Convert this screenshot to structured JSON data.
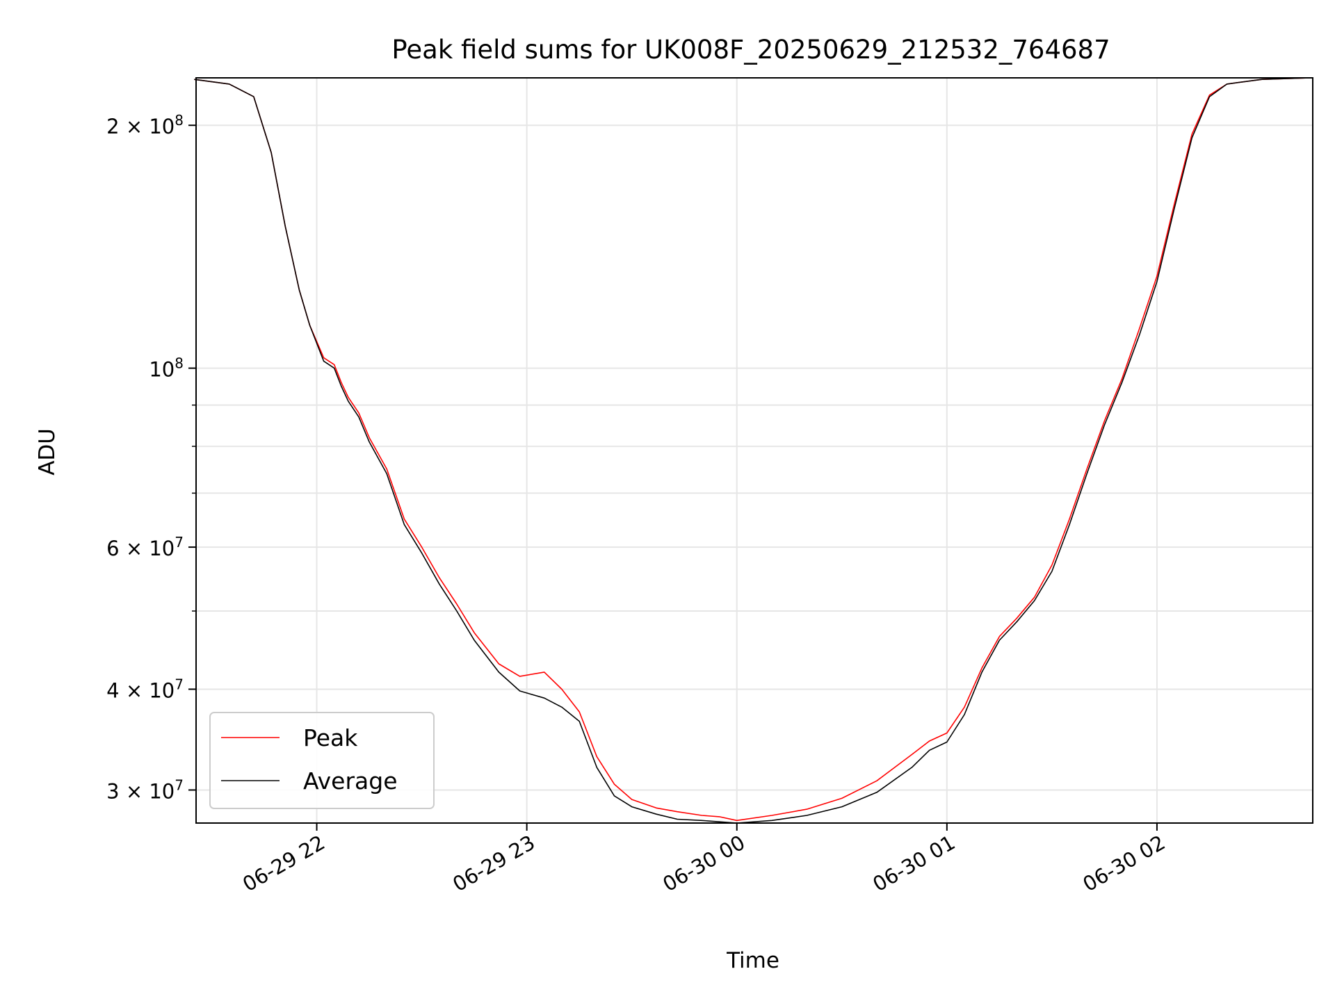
{
  "chart_data": {
    "type": "line",
    "title": "Peak field sums for UK008F_20250629_212532_764687",
    "xlabel": "Time",
    "ylabel": "ADU",
    "yscale": "log",
    "ylim": [
      27300000,
      229000000
    ],
    "xlim": [
      "2025-06-29 21:25:32",
      "2025-06-30 02:44:30"
    ],
    "grid": true,
    "legend_position": "lower-left",
    "x_ticks": [
      {
        "t": "2025-06-29 22:00",
        "label": "06-29 22"
      },
      {
        "t": "2025-06-29 23:00",
        "label": "06-29 23"
      },
      {
        "t": "2025-06-30 00:00",
        "label": "06-30 00"
      },
      {
        "t": "2025-06-30 01:00",
        "label": "06-30 01"
      },
      {
        "t": "2025-06-30 02:00",
        "label": "06-30 02"
      }
    ],
    "y_major_ticks": [
      {
        "value": 30000000,
        "mantissa": "3",
        "exp": "7"
      },
      {
        "value": 40000000,
        "mantissa": "4",
        "exp": "7"
      },
      {
        "value": 60000000,
        "mantissa": "6",
        "exp": "7"
      },
      {
        "value": 100000000,
        "mantissa": "",
        "exp": "8"
      },
      {
        "value": 200000000,
        "mantissa": "2",
        "exp": "8"
      }
    ],
    "y_minor_ticks": [
      50000000,
      70000000,
      80000000,
      90000000
    ],
    "series": [
      {
        "name": "Peak",
        "color": "#ff0000",
        "x": [
          "2025-06-29 21:25",
          "2025-06-29 21:35",
          "2025-06-29 21:42",
          "2025-06-29 21:47",
          "2025-06-29 21:51",
          "2025-06-29 21:55",
          "2025-06-29 21:58",
          "2025-06-29 22:02",
          "2025-06-29 22:05",
          "2025-06-29 22:07",
          "2025-06-29 22:09",
          "2025-06-29 22:12",
          "2025-06-29 22:15",
          "2025-06-29 22:20",
          "2025-06-29 22:25",
          "2025-06-29 22:30",
          "2025-06-29 22:35",
          "2025-06-29 22:40",
          "2025-06-29 22:45",
          "2025-06-29 22:52",
          "2025-06-29 22:58",
          "2025-06-29 23:05",
          "2025-06-29 23:10",
          "2025-06-29 23:15",
          "2025-06-29 23:20",
          "2025-06-29 23:25",
          "2025-06-29 23:30",
          "2025-06-29 23:37",
          "2025-06-29 23:43",
          "2025-06-29 23:50",
          "2025-06-29 23:55",
          "2025-06-30 00:00",
          "2025-06-30 00:10",
          "2025-06-30 00:20",
          "2025-06-30 00:30",
          "2025-06-30 00:40",
          "2025-06-30 00:50",
          "2025-06-30 00:55",
          "2025-06-30 01:00",
          "2025-06-30 01:05",
          "2025-06-30 01:10",
          "2025-06-30 01:15",
          "2025-06-30 01:20",
          "2025-06-30 01:25",
          "2025-06-30 01:30",
          "2025-06-30 01:35",
          "2025-06-30 01:40",
          "2025-06-30 01:45",
          "2025-06-30 01:50",
          "2025-06-30 01:55",
          "2025-06-30 02:00",
          "2025-06-30 02:05",
          "2025-06-30 02:10",
          "2025-06-30 02:15",
          "2025-06-30 02:20",
          "2025-06-30 02:30",
          "2025-06-30 02:44"
        ],
        "y": [
          228000000,
          225000000,
          217000000,
          185000000,
          150000000,
          125000000,
          113000000,
          103000000,
          101000000,
          96000000,
          92000000,
          88000000,
          82000000,
          75000000,
          65000000,
          60000000,
          55000000,
          51000000,
          47000000,
          43000000,
          41500000,
          42000000,
          40000000,
          37500000,
          33000000,
          30500000,
          29200000,
          28500000,
          28200000,
          27900000,
          27800000,
          27500000,
          27900000,
          28400000,
          29300000,
          30800000,
          33200000,
          34500000,
          35300000,
          38000000,
          42500000,
          46500000,
          49000000,
          52000000,
          57000000,
          65000000,
          75000000,
          86000000,
          97000000,
          112000000,
          130000000,
          160000000,
          195000000,
          218000000,
          225000000,
          228000000,
          229000000
        ]
      },
      {
        "name": "Average",
        "color": "#000000",
        "x": [
          "2025-06-29 21:25",
          "2025-06-29 21:35",
          "2025-06-29 21:42",
          "2025-06-29 21:47",
          "2025-06-29 21:51",
          "2025-06-29 21:55",
          "2025-06-29 21:58",
          "2025-06-29 22:02",
          "2025-06-29 22:05",
          "2025-06-29 22:07",
          "2025-06-29 22:09",
          "2025-06-29 22:12",
          "2025-06-29 22:15",
          "2025-06-29 22:20",
          "2025-06-29 22:25",
          "2025-06-29 22:30",
          "2025-06-29 22:35",
          "2025-06-29 22:40",
          "2025-06-29 22:45",
          "2025-06-29 22:52",
          "2025-06-29 22:58",
          "2025-06-29 23:05",
          "2025-06-29 23:10",
          "2025-06-29 23:15",
          "2025-06-29 23:20",
          "2025-06-29 23:25",
          "2025-06-29 23:30",
          "2025-06-29 23:37",
          "2025-06-29 23:43",
          "2025-06-29 23:50",
          "2025-06-29 23:55",
          "2025-06-30 00:00",
          "2025-06-30 00:10",
          "2025-06-30 00:20",
          "2025-06-30 00:30",
          "2025-06-30 00:40",
          "2025-06-30 00:50",
          "2025-06-30 00:55",
          "2025-06-30 01:00",
          "2025-06-30 01:05",
          "2025-06-30 01:10",
          "2025-06-30 01:15",
          "2025-06-30 01:20",
          "2025-06-30 01:25",
          "2025-06-30 01:30",
          "2025-06-30 01:35",
          "2025-06-30 01:40",
          "2025-06-30 01:45",
          "2025-06-30 01:50",
          "2025-06-30 01:55",
          "2025-06-30 02:00",
          "2025-06-30 02:05",
          "2025-06-30 02:10",
          "2025-06-30 02:15",
          "2025-06-30 02:20",
          "2025-06-30 02:30",
          "2025-06-30 02:44"
        ],
        "y": [
          228000000,
          225000000,
          217000000,
          185000000,
          150000000,
          125000000,
          113000000,
          102000000,
          100000000,
          95000000,
          91000000,
          87000000,
          81000000,
          74000000,
          64000000,
          59000000,
          54000000,
          50000000,
          46000000,
          42000000,
          39800000,
          39000000,
          38000000,
          36500000,
          32000000,
          29500000,
          28600000,
          28000000,
          27600000,
          27500000,
          27400000,
          27300000,
          27500000,
          27900000,
          28600000,
          29800000,
          32000000,
          33600000,
          34400000,
          37200000,
          42000000,
          46000000,
          48500000,
          51500000,
          56000000,
          64000000,
          74000000,
          85000000,
          96000000,
          110000000,
          128000000,
          158000000,
          193000000,
          217000000,
          225000000,
          228000000,
          229000000
        ]
      }
    ]
  }
}
